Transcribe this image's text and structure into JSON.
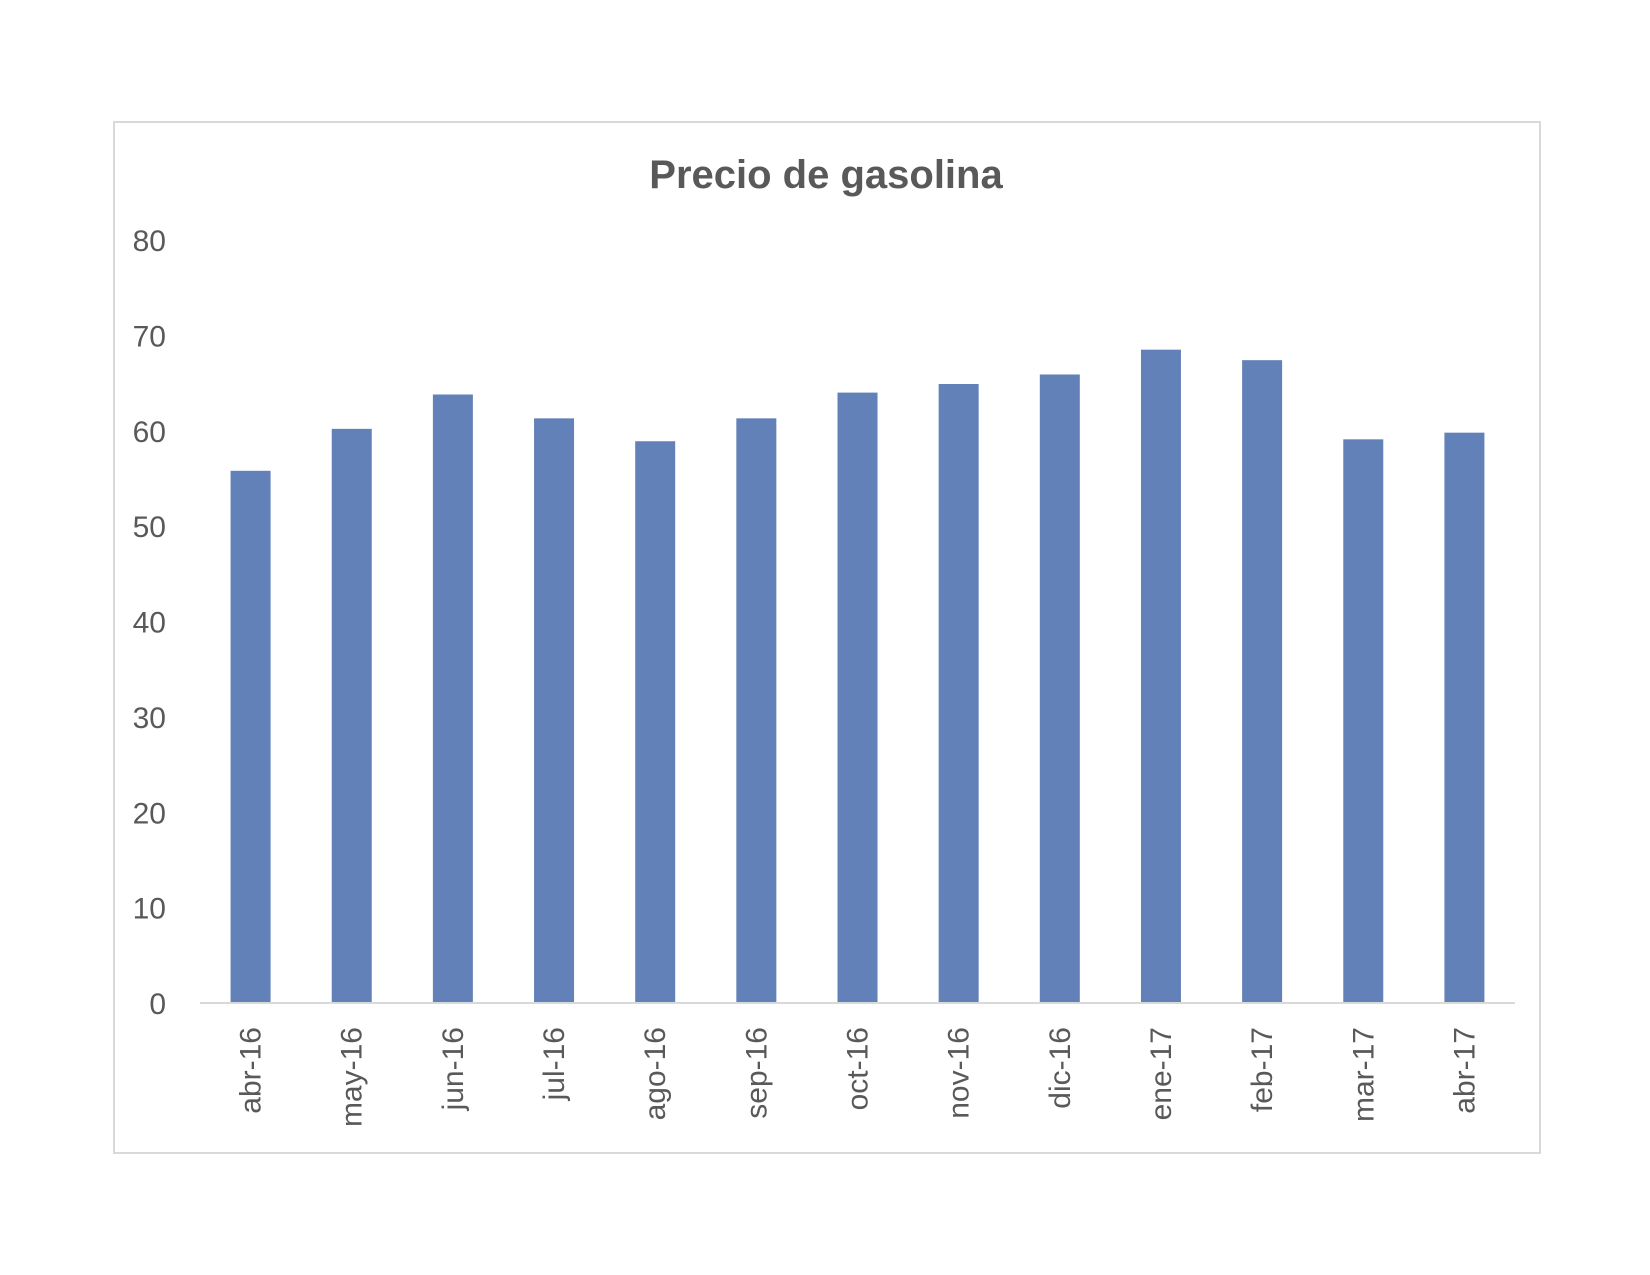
{
  "chart_data": {
    "type": "bar",
    "title": "Precio de gasolina",
    "xlabel": "",
    "ylabel": "",
    "categories": [
      "abr-16",
      "may-16",
      "jun-16",
      "jul-16",
      "ago-16",
      "sep-16",
      "oct-16",
      "nov-16",
      "dic-16",
      "ene-17",
      "feb-17",
      "mar-17",
      "abr-17"
    ],
    "values": [
      55.8,
      60.2,
      63.8,
      61.3,
      58.9,
      61.3,
      64.0,
      64.9,
      65.9,
      68.5,
      67.4,
      59.1,
      59.8
    ],
    "ylim": [
      0,
      80
    ],
    "yticks": [
      0,
      10,
      20,
      30,
      40,
      50,
      60,
      70,
      80
    ],
    "grid": false,
    "legend": "none",
    "bar_color": "#6281b8",
    "axis_color": "#d9d9d9"
  }
}
